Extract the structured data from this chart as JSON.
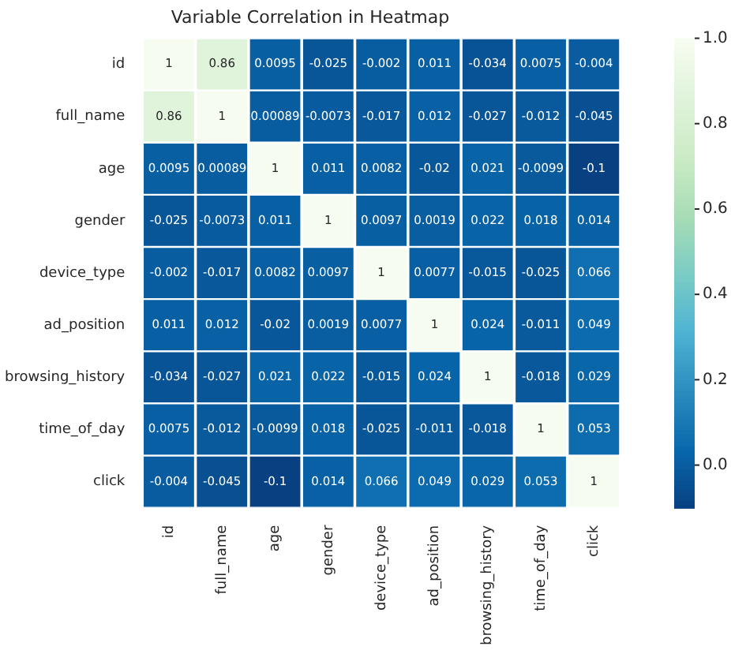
{
  "chart_data": {
    "type": "heatmap",
    "title": "Variable Correlation in Heatmap",
    "categories": [
      "id",
      "full_name",
      "age",
      "gender",
      "device_type",
      "ad_position",
      "browsing_history",
      "time_of_day",
      "click"
    ],
    "y_categories": [
      "id",
      "full_name",
      "age",
      "gender",
      "device_type",
      "ad_position",
      "browsing_history",
      "time_of_day",
      "click"
    ],
    "cells": [
      [
        1,
        0.86,
        0.0095,
        -0.025,
        -0.002,
        0.011,
        -0.034,
        0.0075,
        -0.004
      ],
      [
        0.86,
        1,
        0.00089,
        -0.0073,
        -0.017,
        0.012,
        -0.027,
        -0.012,
        -0.045
      ],
      [
        0.0095,
        0.00089,
        1,
        0.011,
        0.0082,
        -0.02,
        0.021,
        -0.0099,
        -0.1
      ],
      [
        -0.025,
        -0.0073,
        0.011,
        1,
        0.0097,
        0.0019,
        0.022,
        0.018,
        0.014
      ],
      [
        -0.002,
        -0.017,
        0.0082,
        0.0097,
        1,
        0.0077,
        -0.015,
        -0.025,
        0.066
      ],
      [
        0.011,
        0.012,
        -0.02,
        0.0019,
        0.0077,
        1,
        0.024,
        -0.011,
        0.049
      ],
      [
        -0.034,
        -0.027,
        0.021,
        0.022,
        -0.015,
        0.024,
        1,
        -0.018,
        0.029
      ],
      [
        0.0075,
        -0.012,
        -0.0099,
        0.018,
        -0.025,
        -0.011,
        -0.018,
        1,
        0.053
      ],
      [
        -0.004,
        -0.045,
        -0.1,
        0.014,
        0.066,
        0.049,
        0.029,
        0.053,
        1
      ]
    ],
    "clim": [
      -0.1,
      1
    ],
    "cticks": [
      {
        "value": 0,
        "label": "0.0"
      },
      0.2,
      0.4,
      0.6,
      0.8,
      {
        "value": 1,
        "label": "1.0"
      }
    ],
    "data_labels": true
  }
}
